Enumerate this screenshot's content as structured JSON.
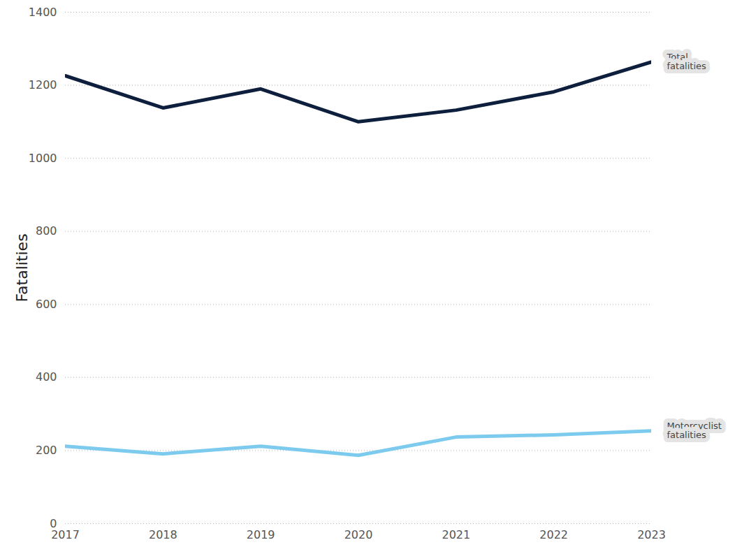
{
  "chart_data": {
    "type": "line",
    "ylabel": "Fatalities",
    "x": [
      2017,
      2018,
      2019,
      2020,
      2021,
      2022,
      2023
    ],
    "series": [
      {
        "name": "Total fatalities",
        "color": "#0d1f3c",
        "values": [
          1226,
          1138,
          1190,
          1100,
          1132,
          1182,
          1264
        ]
      },
      {
        "name": "Motorcyclist fatalities",
        "color": "#7ccbee",
        "values": [
          212,
          191,
          212,
          187,
          237,
          243,
          254
        ]
      }
    ],
    "xlim": [
      2017,
      2023
    ],
    "xticks": [
      2017,
      2018,
      2019,
      2020,
      2021,
      2022,
      2023
    ],
    "ylim": [
      0,
      1400
    ],
    "yticks": [
      0,
      200,
      400,
      600,
      800,
      1000,
      1200,
      1400
    ],
    "grid": true
  }
}
